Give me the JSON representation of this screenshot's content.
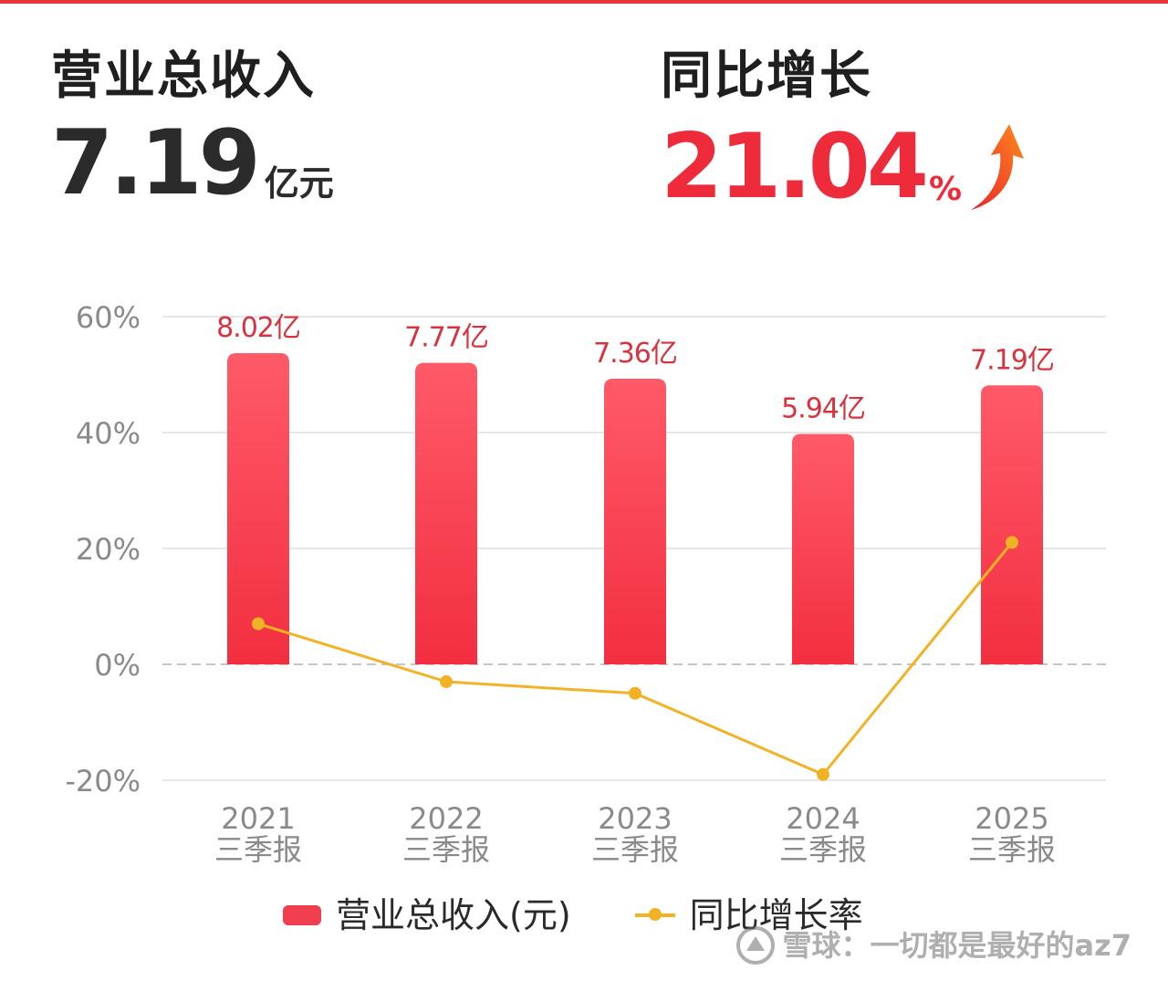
{
  "kpis": {
    "revenue": {
      "label": "营业总收入",
      "value": "7.19",
      "unit": "亿元"
    },
    "growth": {
      "label": "同比增长",
      "value": "21.04",
      "unit": "%",
      "trend_icon": "up-arrow-icon"
    }
  },
  "chart_data": {
    "type": "bar",
    "title": "",
    "xlabel": "",
    "ylabel": "",
    "categories": [
      {
        "year": "2021",
        "period": "三季报"
      },
      {
        "year": "2022",
        "period": "三季报"
      },
      {
        "year": "2023",
        "period": "三季报"
      },
      {
        "year": "2024",
        "period": "三季报"
      },
      {
        "year": "2025",
        "period": "三季报"
      }
    ],
    "y_ticks": [
      "60%",
      "40%",
      "20%",
      "0%",
      "-20%"
    ],
    "ylim": [
      -20,
      60
    ],
    "series": [
      {
        "name": "营业总收入(元)",
        "type": "bar",
        "values": [
          8.02,
          7.77,
          7.36,
          5.94,
          7.19
        ],
        "labels": [
          "8.02亿",
          "7.77亿",
          "7.36亿",
          "5.94亿",
          "7.19亿"
        ],
        "color": "#f0404f"
      },
      {
        "name": "同比增长率",
        "type": "line",
        "values": [
          7,
          -3,
          -5,
          -19,
          21.04
        ],
        "color": "#f2b226"
      }
    ],
    "grid": true,
    "legend": "bottom"
  },
  "watermark": {
    "text": "雪球：一切都是最好的az7"
  }
}
